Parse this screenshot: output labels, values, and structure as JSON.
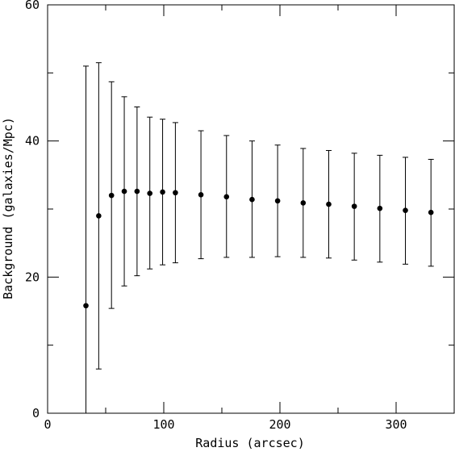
{
  "chart_data": {
    "type": "scatter",
    "title": "",
    "xlabel": "Radius (arcsec)",
    "ylabel": "Background (galaxies/Mpc)",
    "xlim": [
      0,
      350
    ],
    "ylim": [
      0,
      60
    ],
    "grid": false,
    "x_major_ticks": [
      0,
      100,
      200,
      300
    ],
    "x_minor_ticks": [
      50,
      150,
      250
    ],
    "y_major_ticks": [
      0,
      20,
      40,
      60
    ],
    "y_minor_ticks": [
      10,
      30,
      50
    ],
    "x_tick_labels": [
      "0",
      "100",
      "200",
      "300"
    ],
    "y_tick_labels": [
      "0",
      "20",
      "40",
      "60"
    ],
    "series": [
      {
        "marker_color": "#000000",
        "points": [
          {
            "x": 33,
            "y": 15.8,
            "y_low": 0.0,
            "y_high": 51.0
          },
          {
            "x": 44,
            "y": 29.0,
            "y_low": 6.5,
            "y_high": 51.5
          },
          {
            "x": 55,
            "y": 32.0,
            "y_low": 15.4,
            "y_high": 48.7
          },
          {
            "x": 66,
            "y": 32.6,
            "y_low": 18.7,
            "y_high": 46.5
          },
          {
            "x": 77,
            "y": 32.6,
            "y_low": 20.2,
            "y_high": 45.0
          },
          {
            "x": 88,
            "y": 32.3,
            "y_low": 21.2,
            "y_high": 43.5
          },
          {
            "x": 99,
            "y": 32.5,
            "y_low": 21.8,
            "y_high": 43.2
          },
          {
            "x": 110,
            "y": 32.4,
            "y_low": 22.1,
            "y_high": 42.7
          },
          {
            "x": 132,
            "y": 32.1,
            "y_low": 22.7,
            "y_high": 41.5
          },
          {
            "x": 154,
            "y": 31.8,
            "y_low": 22.9,
            "y_high": 40.8
          },
          {
            "x": 176,
            "y": 31.4,
            "y_low": 22.9,
            "y_high": 40.0
          },
          {
            "x": 198,
            "y": 31.2,
            "y_low": 23.0,
            "y_high": 39.4
          },
          {
            "x": 220,
            "y": 30.9,
            "y_low": 22.9,
            "y_high": 38.9
          },
          {
            "x": 242,
            "y": 30.7,
            "y_low": 22.8,
            "y_high": 38.6
          },
          {
            "x": 264,
            "y": 30.4,
            "y_low": 22.5,
            "y_high": 38.2
          },
          {
            "x": 286,
            "y": 30.1,
            "y_low": 22.2,
            "y_high": 37.9
          },
          {
            "x": 308,
            "y": 29.8,
            "y_low": 21.9,
            "y_high": 37.6
          },
          {
            "x": 330,
            "y": 29.5,
            "y_low": 21.6,
            "y_high": 37.3
          }
        ]
      }
    ]
  }
}
